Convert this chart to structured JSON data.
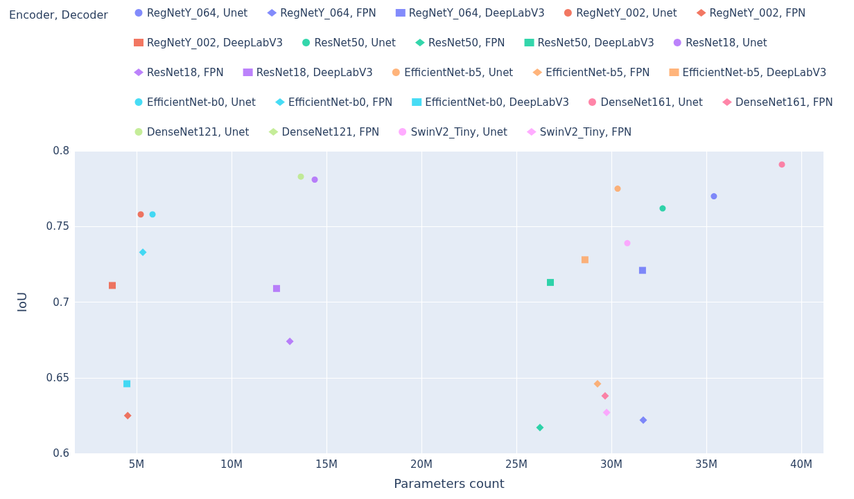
{
  "chart_data": {
    "type": "scatter",
    "legend_title": "Encoder, Decoder",
    "xlabel": "Parameters count",
    "ylabel": "IoU",
    "xlim": [
      1750000,
      41170000
    ],
    "ylim": [
      0.6,
      0.8
    ],
    "xticks": [
      {
        "value": 5000000,
        "label": "5M"
      },
      {
        "value": 10000000,
        "label": "10M"
      },
      {
        "value": 15000000,
        "label": "15M"
      },
      {
        "value": 20000000,
        "label": "20M"
      },
      {
        "value": 25000000,
        "label": "25M"
      },
      {
        "value": 30000000,
        "label": "30M"
      },
      {
        "value": 35000000,
        "label": "35M"
      },
      {
        "value": 40000000,
        "label": "40M"
      }
    ],
    "yticks": [
      0.6,
      0.65,
      0.7,
      0.75,
      0.8
    ],
    "grid": true,
    "legend": "top",
    "series": [
      {
        "name": "RegNetY_064, Unet",
        "color": "#636efa",
        "marker": "circle",
        "x": [
          35400000
        ],
        "values": [
          0.77
        ]
      },
      {
        "name": "RegNetY_064, FPN",
        "color": "#636efa",
        "marker": "diamond",
        "x": [
          31680000
        ],
        "values": [
          0.622
        ]
      },
      {
        "name": "RegNetY_064, DeepLabV3",
        "color": "#636efa",
        "marker": "square",
        "x": [
          31640000
        ],
        "values": [
          0.721
        ]
      },
      {
        "name": "RegNetY_002, Unet",
        "color": "#ef553b",
        "marker": "circle",
        "x": [
          5220000
        ],
        "values": [
          0.758
        ]
      },
      {
        "name": "RegNetY_002, FPN",
        "color": "#ef553b",
        "marker": "diamond",
        "x": [
          4530000
        ],
        "values": [
          0.625
        ]
      },
      {
        "name": "RegNetY_002, DeepLabV3",
        "color": "#ef553b",
        "marker": "square",
        "x": [
          3720000
        ],
        "values": [
          0.711
        ]
      },
      {
        "name": "ResNet50, Unet",
        "color": "#00cc96",
        "marker": "circle",
        "x": [
          32700000
        ],
        "values": [
          0.762
        ]
      },
      {
        "name": "ResNet50, FPN",
        "color": "#00cc96",
        "marker": "diamond",
        "x": [
          26240000
        ],
        "values": [
          0.617
        ]
      },
      {
        "name": "ResNet50, DeepLabV3",
        "color": "#00cc96",
        "marker": "square",
        "x": [
          26790000
        ],
        "values": [
          0.713
        ]
      },
      {
        "name": "ResNet18, Unet",
        "color": "#ab63fa",
        "marker": "circle",
        "x": [
          14380000
        ],
        "values": [
          0.781
        ]
      },
      {
        "name": "ResNet18, FPN",
        "color": "#ab63fa",
        "marker": "diamond",
        "x": [
          13070000
        ],
        "values": [
          0.674
        ]
      },
      {
        "name": "ResNet18, DeepLabV3",
        "color": "#ab63fa",
        "marker": "square",
        "x": [
          12370000
        ],
        "values": [
          0.709
        ]
      },
      {
        "name": "EfficientNet-b5, Unet",
        "color": "#ffa15a",
        "marker": "circle",
        "x": [
          30330000
        ],
        "values": [
          0.775
        ]
      },
      {
        "name": "EfficientNet-b5, FPN",
        "color": "#ffa15a",
        "marker": "diamond",
        "x": [
          29270000
        ],
        "values": [
          0.646
        ]
      },
      {
        "name": "EfficientNet-b5, DeepLabV3",
        "color": "#ffa15a",
        "marker": "square",
        "x": [
          28610000
        ],
        "values": [
          0.728
        ]
      },
      {
        "name": "EfficientNet-b0, Unet",
        "color": "#19d3f3",
        "marker": "circle",
        "x": [
          5840000
        ],
        "values": [
          0.758
        ]
      },
      {
        "name": "EfficientNet-b0, FPN",
        "color": "#19d3f3",
        "marker": "diamond",
        "x": [
          5330000
        ],
        "values": [
          0.733
        ]
      },
      {
        "name": "EfficientNet-b0, DeepLabV3",
        "color": "#19d3f3",
        "marker": "square",
        "x": [
          4490000
        ],
        "values": [
          0.646
        ]
      },
      {
        "name": "DenseNet161, Unet",
        "color": "#ff6692",
        "marker": "circle",
        "x": [
          38980000
        ],
        "values": [
          0.791
        ]
      },
      {
        "name": "DenseNet161, FPN",
        "color": "#ff6692",
        "marker": "diamond",
        "x": [
          29670000
        ],
        "values": [
          0.638
        ]
      },
      {
        "name": "DenseNet121, Unet",
        "color": "#b6e880",
        "marker": "circle",
        "x": [
          13650000
        ],
        "values": [
          0.783
        ]
      },
      {
        "name": "DenseNet121, FPN",
        "color": "#b6e880",
        "marker": "diamond",
        "x": [
          null
        ],
        "values": [
          null
        ]
      },
      {
        "name": "SwinV2_Tiny, Unet",
        "color": "#ff97ff",
        "marker": "circle",
        "x": [
          30840000
        ],
        "values": [
          0.739
        ]
      },
      {
        "name": "SwinV2_Tiny, FPN",
        "color": "#ff97ff",
        "marker": "diamond",
        "x": [
          29750000
        ],
        "values": [
          0.627
        ]
      }
    ]
  }
}
